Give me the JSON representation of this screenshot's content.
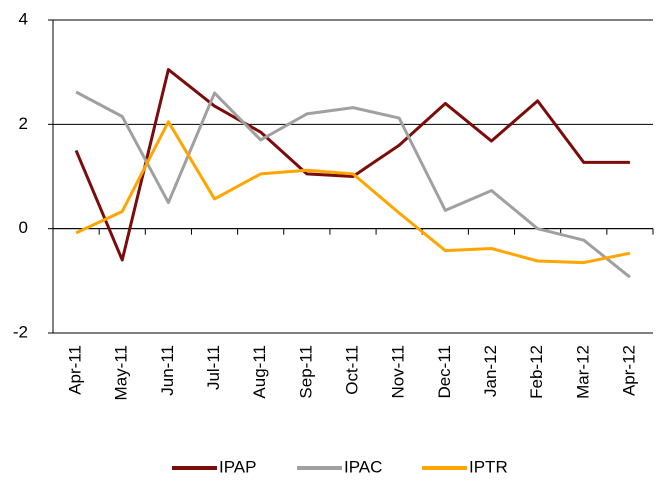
{
  "chart_data": {
    "type": "line",
    "categories": [
      "Apr-11",
      "May-11",
      "Jun-11",
      "Jul-11",
      "Aug-11",
      "Sep-11",
      "Oct-11",
      "Nov-11",
      "Dec-11",
      "Jan-12",
      "Feb-12",
      "Mar-12",
      "Apr-12"
    ],
    "series": [
      {
        "name": "IPAP",
        "color": "#7b0c0c",
        "values": [
          1.5,
          -0.6,
          3.05,
          2.35,
          1.85,
          1.05,
          1.0,
          1.6,
          2.4,
          1.68,
          2.45,
          1.27,
          1.27
        ]
      },
      {
        "name": "IPAC",
        "color": "#a0a0a0",
        "values": [
          2.62,
          2.15,
          0.5,
          2.6,
          1.7,
          2.2,
          2.32,
          2.12,
          0.35,
          0.73,
          0.0,
          -0.22,
          -0.93
        ]
      },
      {
        "name": "IPTR",
        "color": "#ffa500",
        "values": [
          -0.08,
          0.33,
          2.05,
          0.57,
          1.05,
          1.12,
          1.05,
          0.3,
          -0.42,
          -0.38,
          -0.62,
          -0.65,
          -0.47
        ]
      }
    ],
    "ylim": [
      -2,
      4
    ],
    "yticks": [
      -2,
      0,
      2,
      4
    ],
    "grid": true,
    "legend": "bottom"
  }
}
